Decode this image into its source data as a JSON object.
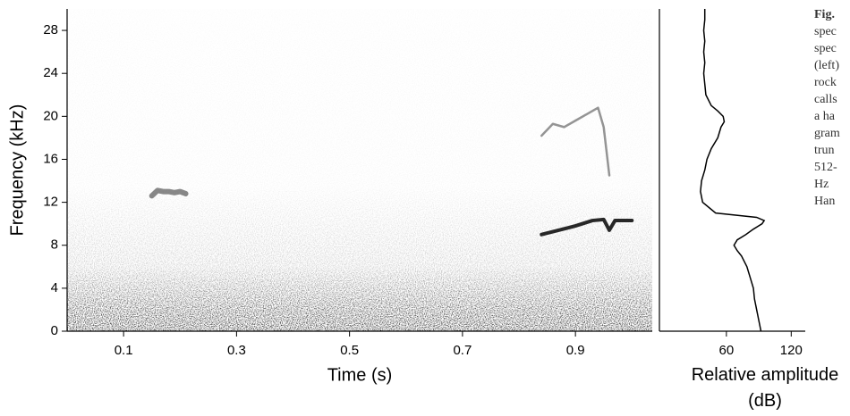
{
  "chart_data": [
    {
      "type": "spectrogram",
      "ylabel": "Frequency (kHz)",
      "xlabel": "Time (s)",
      "xlim": [
        0,
        1.036
      ],
      "ylim": [
        0,
        30
      ],
      "xticks": [
        0.1,
        0.3,
        0.5,
        0.7,
        0.9
      ],
      "yticks": [
        0,
        4,
        8,
        12,
        16,
        20,
        24,
        28
      ],
      "series": [
        {
          "color": "#555555",
          "x": [
            0.15,
            0.16,
            0.17,
            0.18,
            0.19,
            0.2,
            0.21
          ],
          "values": [
            12.6,
            13.1,
            13.0,
            13.0,
            12.9,
            13.0,
            12.8
          ]
        },
        {
          "color": "#111111",
          "x": [
            0.84,
            0.87,
            0.9,
            0.93,
            0.95,
            0.96,
            0.97,
            1.0
          ],
          "values": [
            9.0,
            9.4,
            9.8,
            10.3,
            10.4,
            9.4,
            10.3,
            10.3
          ]
        },
        {
          "color": "#888888",
          "x": [
            0.84,
            0.86,
            0.88,
            0.9,
            0.92,
            0.94,
            0.95,
            0.96
          ],
          "values": [
            18.2,
            19.3,
            19.0,
            19.6,
            20.2,
            20.8,
            19.0,
            14.5
          ]
        }
      ]
    },
    {
      "type": "line",
      "xlabel": "Relative amplitude (dB)",
      "orientation": "horizontal",
      "xlim": [
        -2,
        133
      ],
      "ylim": [
        0,
        30
      ],
      "xticks": [
        60,
        120
      ],
      "color": "#000000",
      "x": [
        0,
        1,
        2,
        3,
        4,
        5,
        6,
        7,
        7.5,
        8,
        8.5,
        9,
        9.5,
        10,
        10.3,
        10.6,
        11,
        12,
        13,
        14,
        15,
        16,
        17,
        18,
        19,
        19.5,
        20,
        20.5,
        21,
        22,
        23,
        24,
        25,
        26,
        27,
        28,
        29,
        30
      ],
      "values": [
        92,
        90,
        88,
        86,
        85,
        82,
        79,
        74,
        70,
        67,
        70,
        78,
        85,
        93,
        95,
        88,
        50,
        38,
        36,
        37,
        40,
        42,
        46,
        52,
        55,
        58,
        57,
        52,
        46,
        41,
        40,
        39,
        40,
        39,
        40,
        39,
        40,
        40
      ]
    }
  ],
  "caption_lines": [
    "Fig.",
    "spec",
    "spec",
    "(left)",
    "rock",
    "calls",
    "a ha",
    "gram",
    "trun",
    "512-",
    "Hz",
    "Han"
  ]
}
